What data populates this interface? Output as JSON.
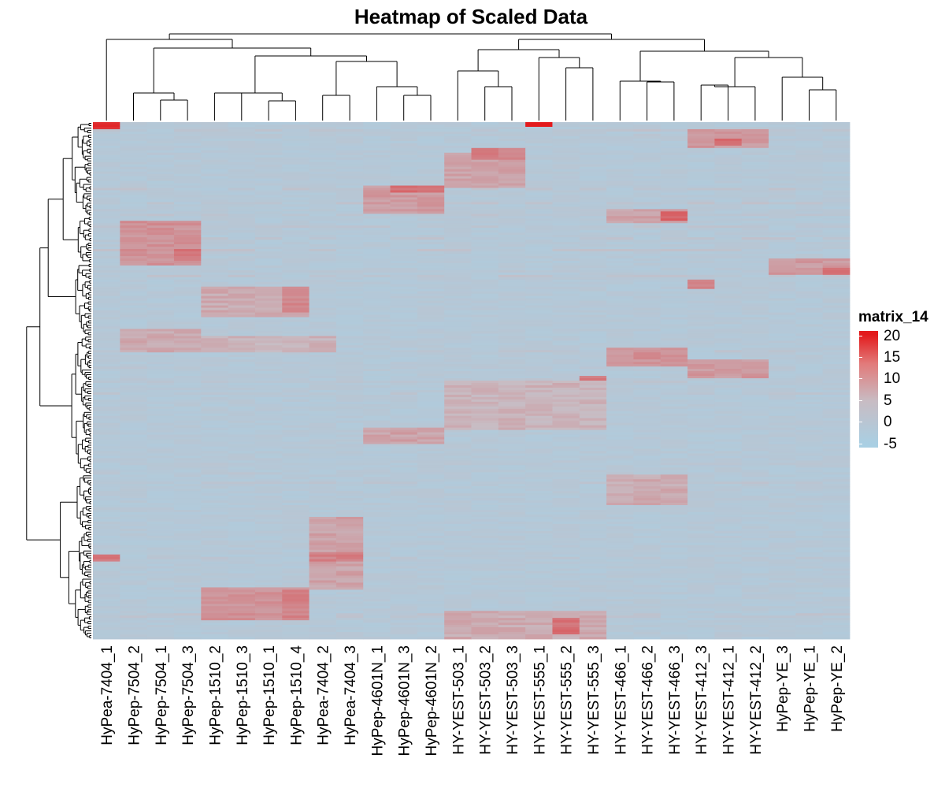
{
  "chart_data": {
    "type": "heatmap",
    "title": "Heatmap of Scaled Data",
    "legend": {
      "title": "matrix_14",
      "ticks": [
        20,
        15,
        10,
        5,
        0,
        -5
      ],
      "range": [
        -6,
        21
      ],
      "position": "right",
      "colors": {
        "low": "#a9cfe3",
        "mid": "#c8bcc3",
        "high": "#e31a1c"
      }
    },
    "columns": [
      "HyPea-7404_1",
      "HyPep-7504_2",
      "HyPep-7504_1",
      "HyPep-7504_3",
      "HyPep-1510_2",
      "HyPep-1510_3",
      "HyPep-1510_1",
      "HyPep-1510_4",
      "HyPea-7404_2",
      "HyPea-7404_3",
      "HyPep-4601N_1",
      "HyPep-4601N_3",
      "HyPep-4601N_2",
      "HY-YEST-503_1",
      "HY-YEST-503_2",
      "HY-YEST-503_3",
      "HY-YEST-555_1",
      "HY-YEST-555_2",
      "HY-YEST-555_3",
      "HY-YEST-466_1",
      "HY-YEST-466_2",
      "HY-YEST-466_3",
      "HY-YEST-412_3",
      "HY-YEST-412_1",
      "HY-YEST-412_2",
      "HyPep-YE_3",
      "HyPep-YE_1",
      "HyPep-YE_2"
    ],
    "row_count": 220,
    "blocks": [
      {
        "cols": [
          0,
          0
        ],
        "rows": [
          0,
          2
        ],
        "value": 19
      },
      {
        "cols": [
          16,
          16
        ],
        "rows": [
          0,
          1
        ],
        "value": 21
      },
      {
        "cols": [
          1,
          3
        ],
        "rows": [
          42,
          60
        ],
        "value": 7
      },
      {
        "cols": [
          3,
          3
        ],
        "rows": [
          54,
          58
        ],
        "value": 10
      },
      {
        "cols": [
          10,
          12
        ],
        "rows": [
          27,
          38
        ],
        "value": 6
      },
      {
        "cols": [
          11,
          12
        ],
        "rows": [
          27,
          29
        ],
        "value": 11
      },
      {
        "cols": [
          13,
          15
        ],
        "rows": [
          13,
          27
        ],
        "value": 5
      },
      {
        "cols": [
          14,
          15
        ],
        "rows": [
          11,
          15
        ],
        "value": 9
      },
      {
        "cols": [
          22,
          24
        ],
        "rows": [
          3,
          10
        ],
        "value": 6
      },
      {
        "cols": [
          23,
          23
        ],
        "rows": [
          7,
          9
        ],
        "value": 12
      },
      {
        "cols": [
          19,
          21
        ],
        "rows": [
          37,
          42
        ],
        "value": 5
      },
      {
        "cols": [
          21,
          21
        ],
        "rows": [
          38,
          41
        ],
        "value": 12
      },
      {
        "cols": [
          4,
          7
        ],
        "rows": [
          70,
          82
        ],
        "value": 4
      },
      {
        "cols": [
          7,
          7
        ],
        "rows": [
          70,
          80
        ],
        "value": 8
      },
      {
        "cols": [
          1,
          3
        ],
        "rows": [
          88,
          97
        ],
        "value": 4
      },
      {
        "cols": [
          4,
          8
        ],
        "rows": [
          91,
          97
        ],
        "value": 3
      },
      {
        "cols": [
          19,
          21
        ],
        "rows": [
          96,
          103
        ],
        "value": 7
      },
      {
        "cols": [
          18,
          18
        ],
        "rows": [
          108,
          113
        ],
        "value": 10
      },
      {
        "cols": [
          22,
          24
        ],
        "rows": [
          101,
          108
        ],
        "value": 6
      },
      {
        "cols": [
          25,
          27
        ],
        "rows": [
          58,
          64
        ],
        "value": 6
      },
      {
        "cols": [
          27,
          27
        ],
        "rows": [
          62,
          64
        ],
        "value": 11
      },
      {
        "cols": [
          22,
          22
        ],
        "rows": [
          67,
          70
        ],
        "value": 9
      },
      {
        "cols": [
          13,
          18
        ],
        "rows": [
          110,
          130
        ],
        "value": 3
      },
      {
        "cols": [
          19,
          21
        ],
        "rows": [
          150,
          162
        ],
        "value": 4
      },
      {
        "cols": [
          0,
          0
        ],
        "rows": [
          184,
          186
        ],
        "value": 10
      },
      {
        "cols": [
          8,
          9
        ],
        "rows": [
          168,
          198
        ],
        "value": 5
      },
      {
        "cols": [
          8,
          9
        ],
        "rows": [
          183,
          186
        ],
        "value": 9
      },
      {
        "cols": [
          4,
          7
        ],
        "rows": [
          198,
          211
        ],
        "value": 7
      },
      {
        "cols": [
          7,
          7
        ],
        "rows": [
          199,
          210
        ],
        "value": 9
      },
      {
        "cols": [
          13,
          18
        ],
        "rows": [
          208,
          220
        ],
        "value": 4
      },
      {
        "cols": [
          17,
          17
        ],
        "rows": [
          211,
          217
        ],
        "value": 11
      },
      {
        "cols": [
          10,
          12
        ],
        "rows": [
          130,
          136
        ],
        "value": 5
      }
    ]
  }
}
